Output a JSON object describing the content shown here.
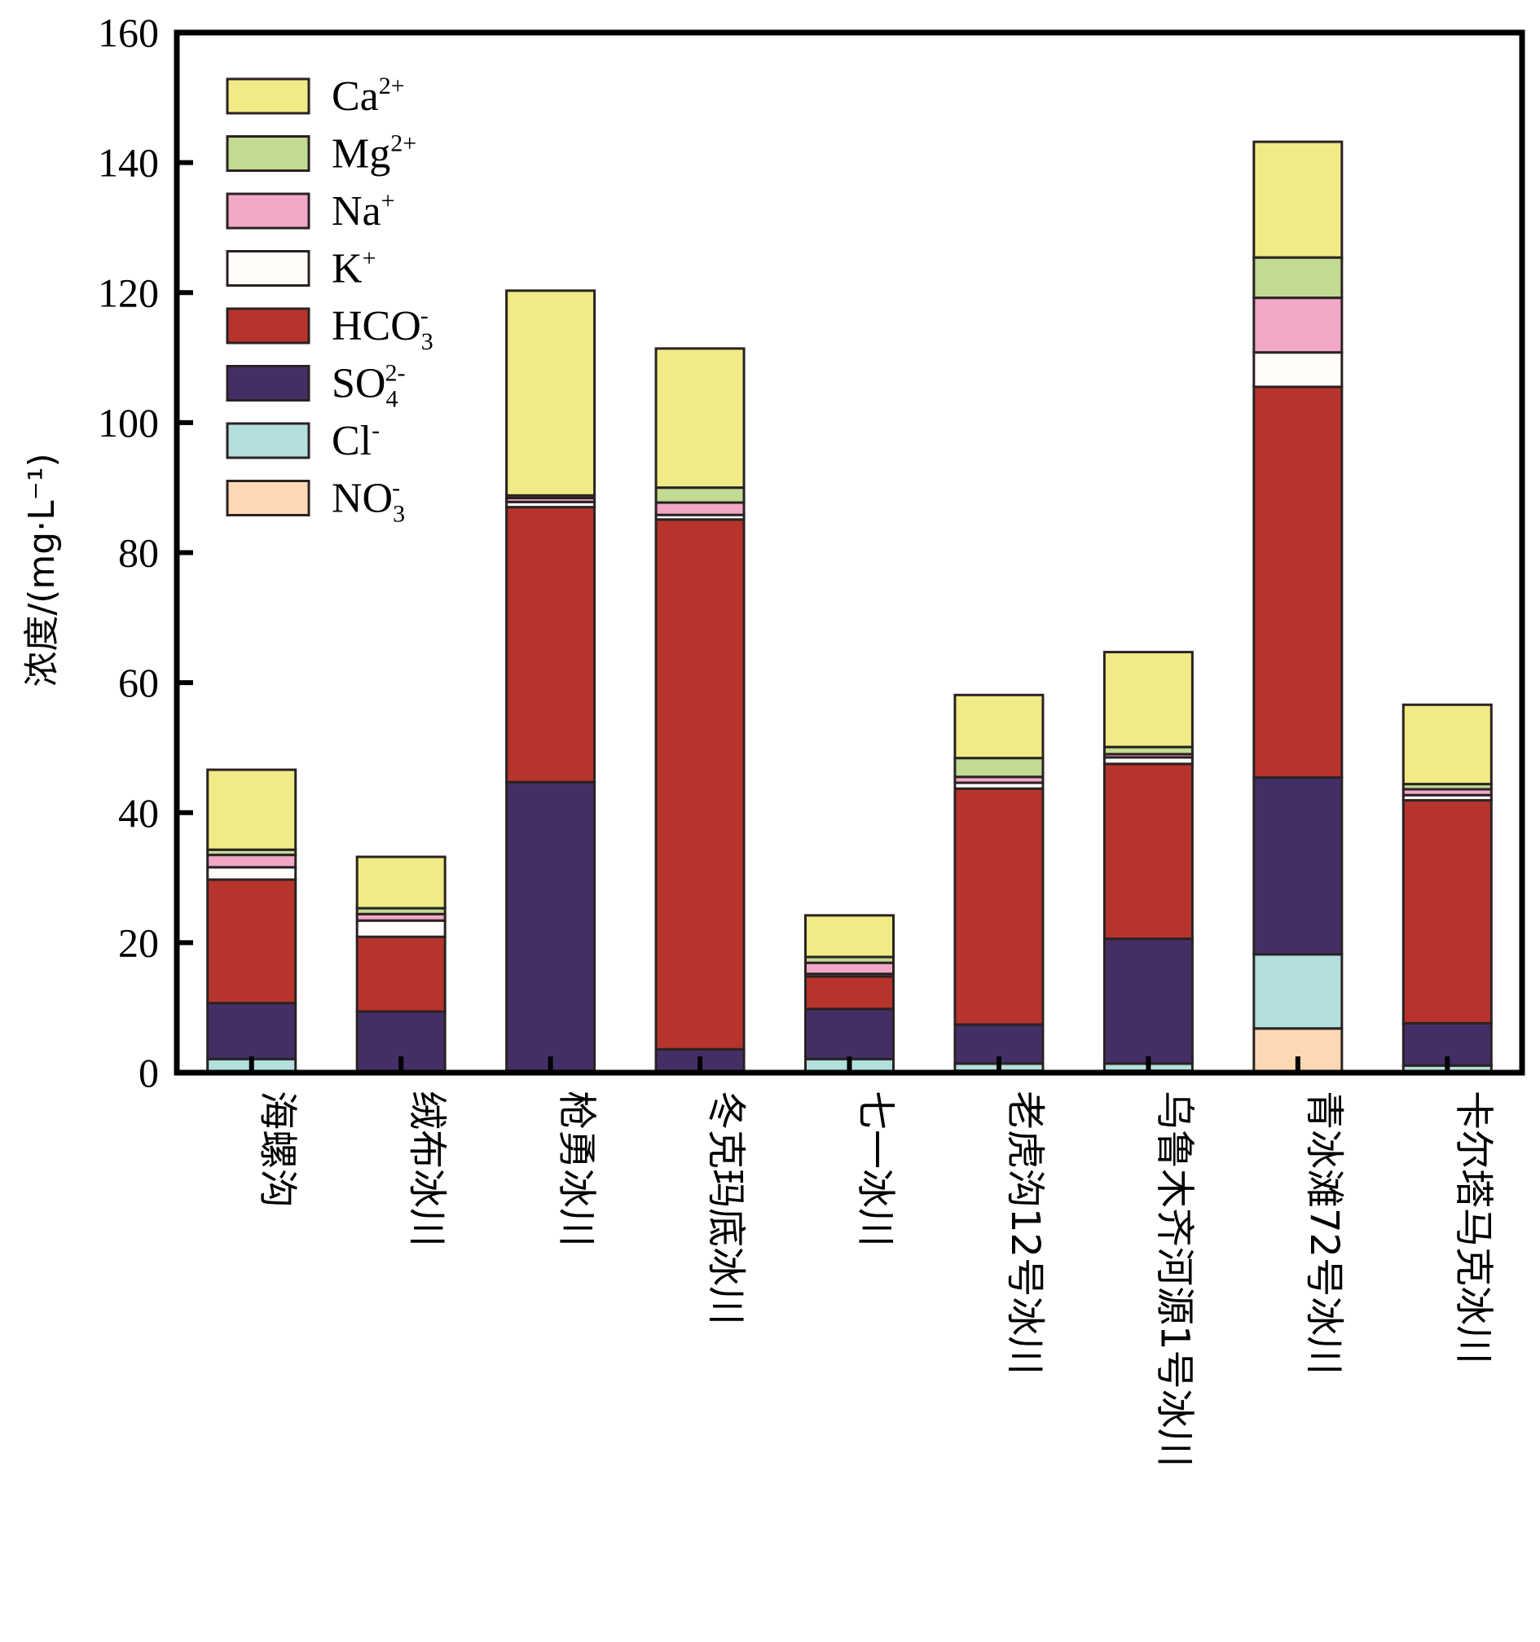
{
  "chart_data": {
    "type": "bar",
    "stacked": true,
    "title": "",
    "xlabel": "",
    "ylabel": "浓度/(mg·L⁻¹)",
    "ylim": [
      0,
      160
    ],
    "yticks": [
      0,
      20,
      40,
      60,
      80,
      100,
      120,
      140,
      160
    ],
    "grid": false,
    "legend_position": "top-left",
    "categories": [
      "海螺沟",
      "绒布冰川",
      "枪勇冰川",
      "冬克玛底冰川",
      "七一冰川",
      "老虎沟12号冰川",
      "乌鲁木齐河源1号冰川",
      "青冰滩72号冰川",
      "卡尔塔马克冰川"
    ],
    "series": [
      {
        "name": "NO3-",
        "label_base": "NO",
        "label_sub": "3",
        "label_sup": "-",
        "color": "#fcd9b4",
        "values": [
          0,
          0,
          0,
          0,
          0.2,
          0.3,
          0.3,
          6.8,
          0.2
        ]
      },
      {
        "name": "Cl-",
        "label_base": "Cl",
        "label_sub": "",
        "label_sup": "-",
        "color": "#b3dfdc",
        "values": [
          2.1,
          0.2,
          0.3,
          0.2,
          1.9,
          1.1,
          1.1,
          11.4,
          0.9
        ]
      },
      {
        "name": "SO4 2-",
        "label_base": "SO",
        "label_sub": "4",
        "label_sup": "2-",
        "color": "#432f66",
        "values": [
          8.6,
          9.2,
          44.4,
          3.4,
          7.7,
          6.0,
          19.2,
          27.2,
          6.5
        ]
      },
      {
        "name": "HCO3-",
        "label_base": "HCO",
        "label_sub": "3",
        "label_sup": "-",
        "color": "#b7342c",
        "values": [
          19.0,
          11.5,
          42.3,
          81.5,
          5.0,
          36.3,
          26.9,
          60.1,
          34.3
        ]
      },
      {
        "name": "K+",
        "label_base": "K",
        "label_sub": "",
        "label_sup": "+",
        "color": "#fffcfa",
        "values": [
          1.9,
          2.5,
          0.8,
          0.7,
          0.4,
          0.9,
          1.0,
          5.3,
          0.8
        ]
      },
      {
        "name": "Na+",
        "label_base": "Na",
        "label_sub": "",
        "label_sup": "+",
        "color": "#f2a7c7",
        "values": [
          1.9,
          1.0,
          0.6,
          1.9,
          1.7,
          0.9,
          0.5,
          8.4,
          0.9
        ]
      },
      {
        "name": "Mg2+",
        "label_base": "Mg",
        "label_sub": "",
        "label_sup": "2+",
        "color": "#c1db92",
        "values": [
          0.8,
          0.9,
          0.4,
          2.3,
          0.9,
          2.9,
          1.1,
          6.2,
          0.8
        ]
      },
      {
        "name": "Ca2+",
        "label_base": "Ca",
        "label_sub": "",
        "label_sup": "2+",
        "color": "#f0eb86",
        "values": [
          12.3,
          7.9,
          31.5,
          21.4,
          6.4,
          9.7,
          14.6,
          17.8,
          12.2
        ]
      }
    ],
    "legend_order": [
      "Ca2+",
      "Mg2+",
      "Na+",
      "K+",
      "HCO3-",
      "SO4 2-",
      "Cl-",
      "NO3-"
    ]
  }
}
